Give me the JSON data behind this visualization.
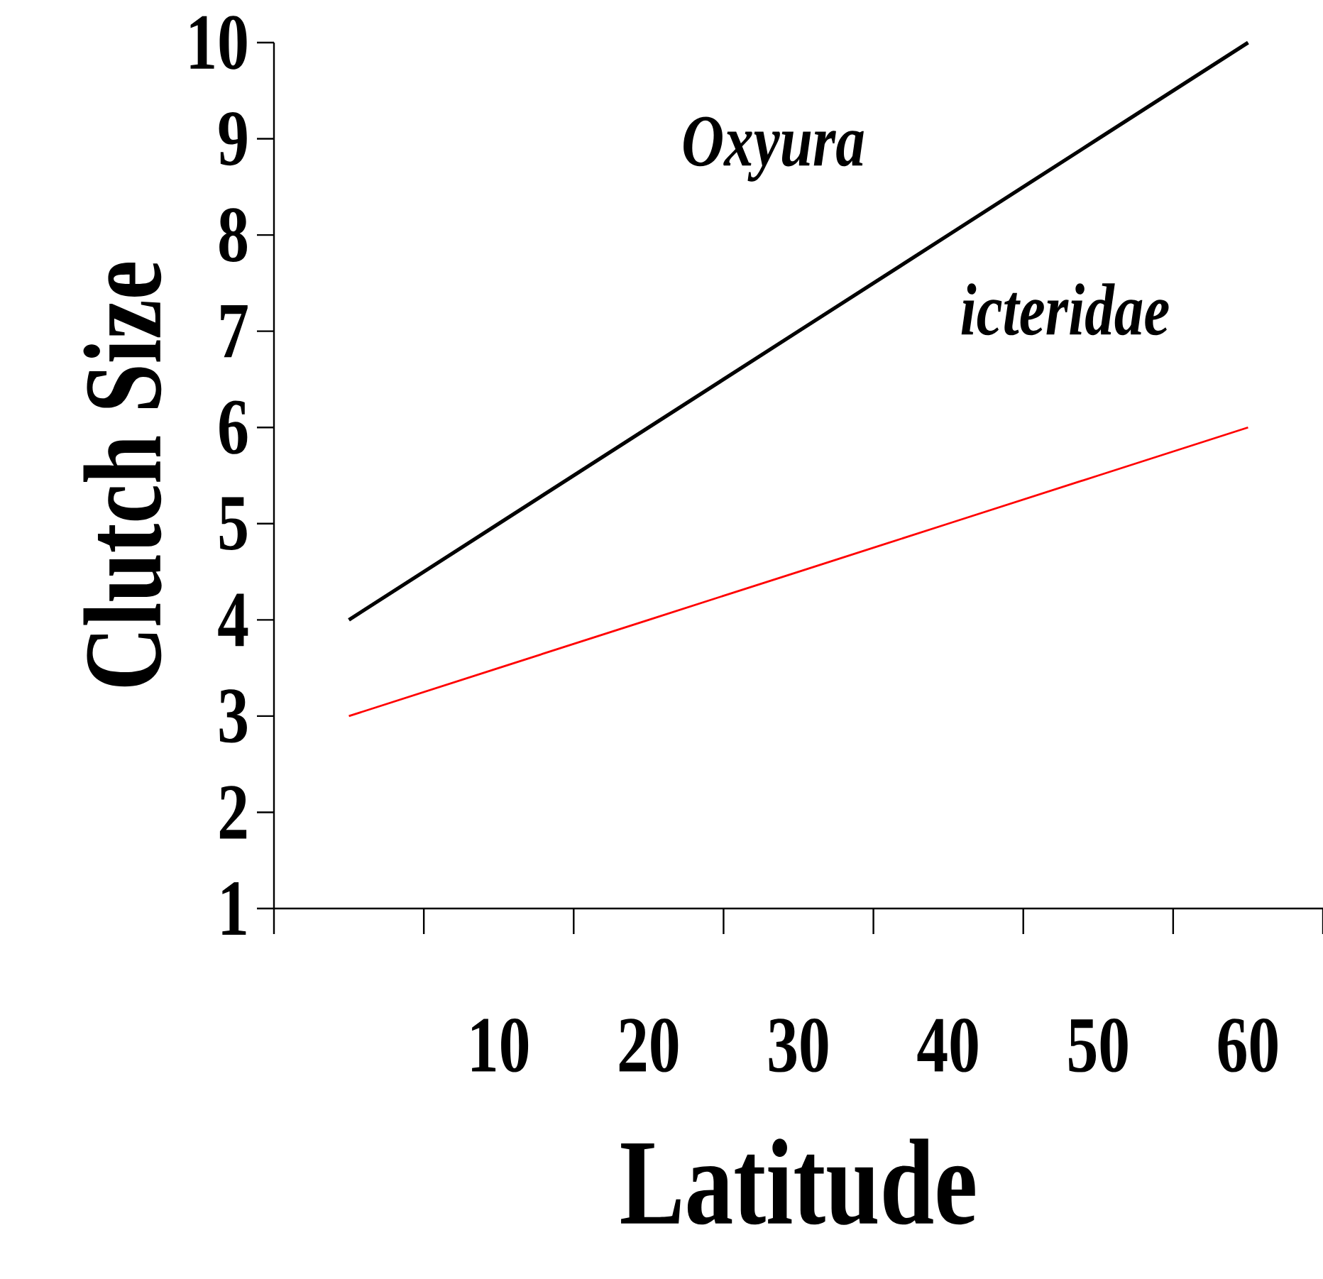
{
  "chart_data": {
    "type": "line",
    "xlabel": "Latitude",
    "ylabel": "Clutch Size",
    "categories": [
      null,
      "10",
      "20",
      "30",
      "40",
      "50",
      "60"
    ],
    "series": [
      {
        "color": "#000000",
        "values": [
          4,
          5,
          6,
          7,
          8,
          9,
          10
        ]
      },
      {
        "color": "#ff0000",
        "values": [
          3,
          3.5,
          4,
          4.5,
          5,
          5.5,
          6
        ]
      }
    ],
    "ylim": [
      1,
      10
    ],
    "yticks": [
      1,
      2,
      3,
      4,
      5,
      6,
      7,
      8,
      9,
      10
    ],
    "annotations": [
      "*Oxyura*",
      "*icteridae*"
    ]
  }
}
